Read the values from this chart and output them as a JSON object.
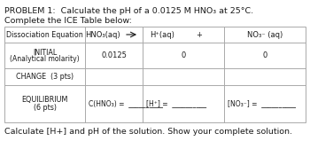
{
  "title": "PROBLEM 1:  Calculate the pH of a 0.0125 M HNO₃ at 25°C.",
  "subtitle": "Complete the ICE Table below:",
  "header_col0": "Dissociation Equation",
  "header_col1": "HNO₃(aq)",
  "header_col2": "H⁺(aq)",
  "header_col2b": "+",
  "header_col3": "NO₃⁻ (aq)",
  "row1_label_line1": "INITIAL",
  "row1_label_line2": "(Analytical molarity)",
  "row1_c1": "0.0125",
  "row1_c2": "0",
  "row1_c3": "0",
  "row2_label": "CHANGE  (3 pts)",
  "row3_label_line1": "EQUILIBRIUM",
  "row3_label_line2": "(6 pts)",
  "row3_c1": "C(HNO₃) =  __________",
  "row3_c2": "[H⁺] =  __________",
  "row3_c3": "[NO₃⁻] =  __________",
  "footer": "Calculate [H+] and pH of the solution. Show your complete solution.",
  "bg_color": "#ffffff",
  "text_color": "#1a1a1a",
  "border_color": "#aaaaaa",
  "fs_title": 6.8,
  "fs_cell": 6.0,
  "fs_label": 5.8
}
